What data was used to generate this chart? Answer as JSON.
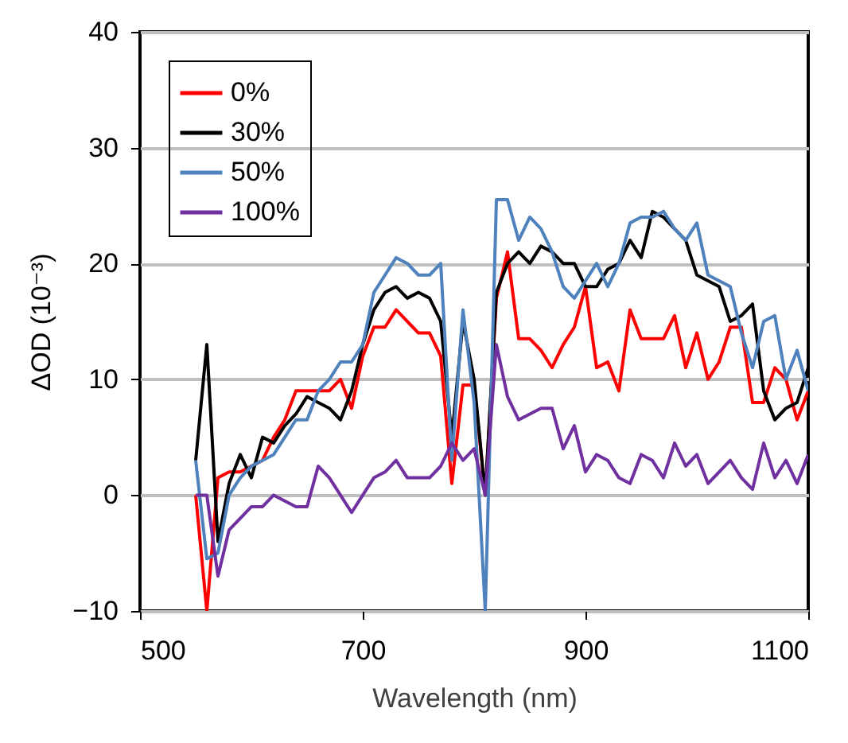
{
  "chart_data": {
    "type": "line",
    "xlabel": "Wavelength (nm)",
    "ylabel": "ΔOD (10⁻³)",
    "x": [
      550,
      560,
      570,
      580,
      590,
      600,
      610,
      620,
      630,
      640,
      650,
      660,
      670,
      680,
      690,
      700,
      710,
      720,
      730,
      740,
      750,
      760,
      770,
      780,
      790,
      800,
      810,
      820,
      830,
      840,
      850,
      860,
      870,
      880,
      890,
      900,
      910,
      920,
      930,
      940,
      950,
      960,
      970,
      980,
      990,
      1000,
      1010,
      1020,
      1030,
      1040,
      1050,
      1060,
      1070,
      1080,
      1090,
      1100
    ],
    "series": [
      {
        "name": "0%",
        "color": "#ff0000",
        "values": [
          0,
          -10,
          1.5,
          2,
          2,
          2.5,
          3,
          5,
          6.5,
          9,
          9,
          9,
          9,
          10,
          7.5,
          12,
          14.5,
          14.5,
          16,
          15,
          14,
          14,
          12,
          1,
          9.5,
          9.5,
          0,
          17,
          21,
          13.5,
          13.5,
          12.5,
          11,
          13,
          14.5,
          18,
          11,
          11.5,
          9,
          16,
          13.5,
          13.5,
          13.5,
          15.5,
          11,
          14,
          10,
          11.5,
          14.5,
          14.5,
          8,
          8,
          11,
          10,
          6.5,
          9
        ]
      },
      {
        "name": "30%",
        "color": "#000000",
        "values": [
          3,
          13,
          -4,
          1,
          3.5,
          1.5,
          5,
          4.5,
          6,
          7,
          8.5,
          8,
          7.5,
          6.5,
          9,
          13,
          16,
          17.5,
          18,
          17,
          17.5,
          17,
          15,
          5,
          15,
          10,
          0,
          17.5,
          20,
          21,
          20,
          21.5,
          21,
          20,
          20,
          18,
          18,
          19.5,
          20,
          22,
          20.5,
          24.5,
          24,
          23,
          22,
          19,
          18.5,
          18,
          15,
          15.5,
          16.5,
          9,
          6.5,
          7.5,
          8,
          11
        ]
      },
      {
        "name": "50%",
        "color": "#4f81bd",
        "values": [
          3,
          -5.5,
          -5,
          0,
          1.5,
          2.5,
          3,
          3.5,
          5,
          6.5,
          6.5,
          9,
          10,
          11.5,
          11.5,
          13,
          17.5,
          19,
          20.5,
          20,
          19,
          19,
          20,
          3,
          16,
          8,
          -10,
          25.5,
          25.5,
          22,
          24,
          23,
          21,
          18,
          17,
          18.5,
          20,
          18,
          20,
          23.5,
          24,
          24,
          24.5,
          23,
          22,
          23.5,
          19,
          18.5,
          18,
          14,
          11,
          15,
          15.5,
          10,
          12.5,
          9
        ]
      },
      {
        "name": "100%",
        "color": "#7030a0",
        "values": [
          0,
          0,
          -7,
          -3,
          -2,
          -1,
          -1,
          0,
          -0.5,
          -1,
          -1,
          2.5,
          1.5,
          0,
          -1.5,
          0,
          1.5,
          2,
          3,
          1.5,
          1.5,
          1.5,
          2.5,
          4.5,
          3,
          4,
          0,
          13,
          8.5,
          6.5,
          7,
          7.5,
          7.5,
          4,
          6,
          2,
          3.5,
          3,
          1.5,
          1,
          3.5,
          3,
          1.5,
          4.5,
          2.5,
          3.5,
          1,
          2,
          3,
          1.5,
          0.5,
          4.5,
          1.5,
          3,
          1,
          3.5
        ]
      }
    ],
    "xlim": [
      500,
      1100
    ],
    "xticks": [
      500,
      700,
      900,
      1100
    ],
    "ylim": [
      -10,
      40
    ],
    "yticks": [
      -10,
      0,
      10,
      20,
      30,
      40
    ],
    "grid": "y",
    "legend": "top left",
    "marker": "none",
    "line_style": "solid"
  }
}
